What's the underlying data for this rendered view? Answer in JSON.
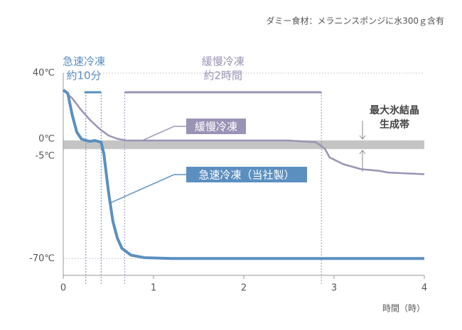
{
  "chart_data": {
    "type": "line",
    "subtitle": "ダミー食材：メラニンスポンジに水300ｇ含有",
    "xlabel": "時間（時）",
    "xlim": [
      0,
      4
    ],
    "xticks": [
      0,
      1,
      2,
      3,
      4
    ],
    "ylim": [
      -80,
      40
    ],
    "yticks": [
      {
        "value": 40,
        "label": "40℃"
      },
      {
        "value": 0,
        "label": "0℃"
      },
      {
        "value": -5,
        "label": "-5℃"
      },
      {
        "value": -70,
        "label": "-70℃"
      }
    ],
    "grid": true,
    "band": {
      "lines": [
        "最大氷結晶",
        "生成帯"
      ],
      "range": [
        0,
        -5
      ],
      "color": "#c4c4c4"
    },
    "periods": [
      {
        "lines": [
          "急速冷凍",
          "約10分"
        ],
        "range": [
          0.25,
          0.42
        ],
        "color": "#5b8fc0"
      },
      {
        "lines": [
          "緩慢冷凍",
          "約2時間"
        ],
        "range": [
          0.68,
          2.86
        ],
        "color": "#9b93b5"
      }
    ],
    "series": [
      {
        "name": "緩慢冷凍",
        "color": "#9b93b5",
        "x": [
          0,
          0.1,
          0.2,
          0.3,
          0.4,
          0.5,
          0.6,
          0.7,
          1,
          2,
          2.5,
          2.8,
          2.9,
          2.95,
          3.1,
          3.3,
          3.5,
          3.6,
          4
        ],
        "values": [
          30,
          25,
          18,
          12,
          7,
          3,
          1,
          0,
          0,
          0,
          0,
          -1,
          -5,
          -10,
          -14,
          -17,
          -18,
          -19,
          -20
        ]
      },
      {
        "name": "急速冷凍（当社製）",
        "color": "#5b8fc0",
        "x": [
          0,
          0.05,
          0.1,
          0.15,
          0.2,
          0.25,
          0.3,
          0.35,
          0.42,
          0.45,
          0.5,
          0.55,
          0.6,
          0.65,
          0.75,
          0.9,
          1.2,
          2,
          3,
          4
        ],
        "values": [
          30,
          28,
          15,
          5,
          1,
          0,
          -0.5,
          0,
          -1,
          -8,
          -30,
          -48,
          -58,
          -64,
          -68,
          -69.5,
          -70,
          -70,
          -70,
          -70
        ]
      }
    ]
  }
}
